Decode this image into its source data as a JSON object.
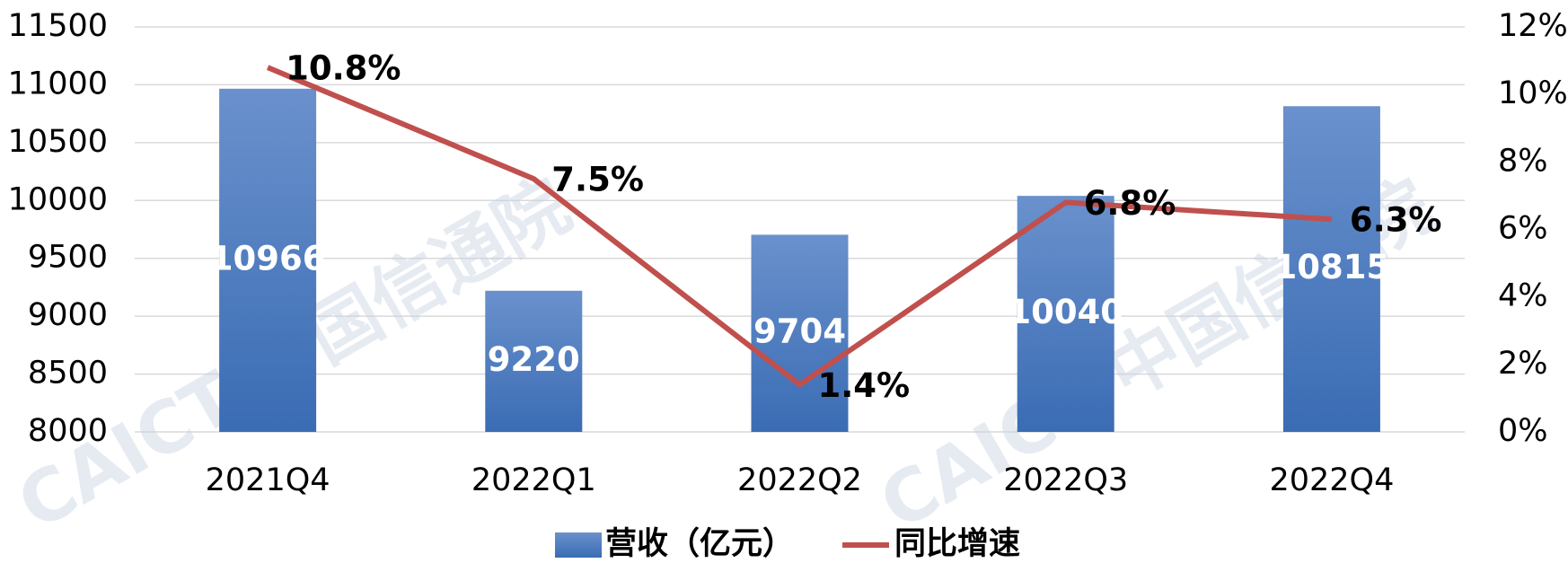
{
  "chart_data": {
    "type": "bar_line",
    "categories": [
      "2021Q4",
      "2022Q1",
      "2022Q2",
      "2022Q3",
      "2022Q4"
    ],
    "series": [
      {
        "name": "营收（亿元）",
        "type": "bar",
        "color": "#4a78bd",
        "values": [
          10966,
          9220,
          9704,
          10040,
          10815
        ]
      },
      {
        "name": "同比增速",
        "type": "line",
        "axis": "y2",
        "color": "#c0504d",
        "values": [
          10.8,
          7.5,
          1.4,
          6.8,
          6.3
        ],
        "value_labels": [
          "10.8%",
          "7.5%",
          "1.4%",
          "6.8%",
          "6.3%"
        ]
      }
    ],
    "ylim": [
      8000,
      11500
    ],
    "yticks": [
      8000,
      8500,
      9000,
      9500,
      10000,
      10500,
      11000,
      11500
    ],
    "y2lim": [
      0,
      12
    ],
    "y2ticks": [
      {
        "value": 0,
        "label": "0%"
      },
      {
        "value": 2,
        "label": "2%"
      },
      {
        "value": 4,
        "label": "4%"
      },
      {
        "value": 6,
        "label": "6%"
      },
      {
        "value": 8,
        "label": "8%"
      },
      {
        "value": 10,
        "label": "10%"
      },
      {
        "value": 12,
        "label": "12%"
      }
    ],
    "grid": true,
    "legend": "bottom",
    "watermark": "CAICT 中国信通院"
  }
}
